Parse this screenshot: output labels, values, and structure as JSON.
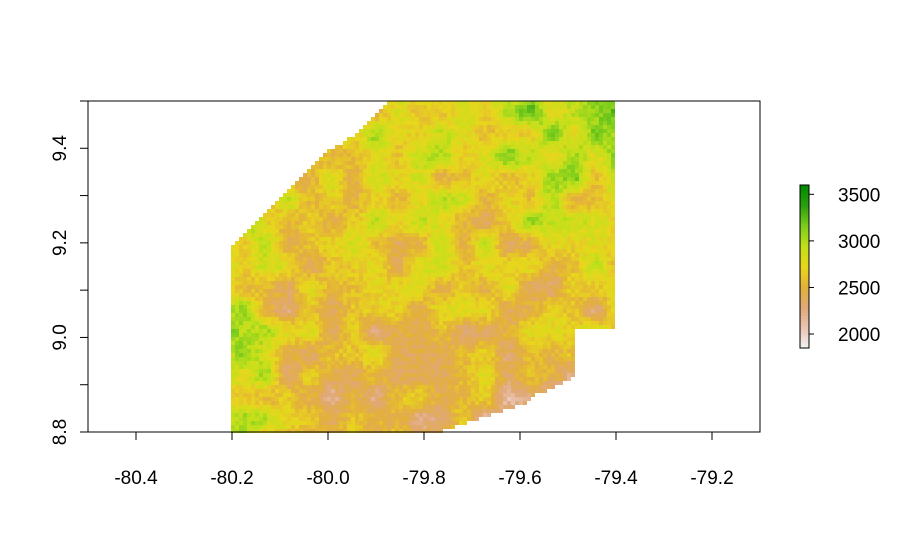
{
  "chart_data": {
    "type": "heatmap",
    "title": "",
    "xlabel": "",
    "ylabel": "",
    "xlim": [
      -80.5,
      -79.1
    ],
    "ylim": [
      8.8,
      9.5
    ],
    "x_ticks": [
      -80.4,
      -80.2,
      -80.0,
      -79.8,
      -79.6,
      -79.4,
      -79.2
    ],
    "x_tick_labels": [
      "-80.4",
      "-80.2",
      "-80.0",
      "-79.8",
      "-79.6",
      "-79.4",
      "-79.2"
    ],
    "y_ticks": [
      8.8,
      9.0,
      9.2,
      9.4
    ],
    "y_tick_labels": [
      "8.8",
      "9.0",
      "9.2",
      "9.4"
    ],
    "y_minor_ticks": [
      8.9,
      9.1,
      9.3,
      9.5
    ],
    "raster_extent": {
      "x": [
        -80.2,
        -79.4
      ],
      "y": [
        8.8,
        9.5
      ]
    },
    "legend": {
      "position": "right",
      "min": 1850,
      "max": 3600,
      "ticks": [
        2000,
        2500,
        3000,
        3500
      ],
      "tick_labels": [
        "2000",
        "2500",
        "3000",
        "3500"
      ],
      "colors": [
        "#f2f2f2",
        "#e9c5b4",
        "#e0a878",
        "#e3b03a",
        "#e8d61c",
        "#c3e01b",
        "#7ccd1d",
        "#2ba00f",
        "#008a00"
      ]
    }
  }
}
